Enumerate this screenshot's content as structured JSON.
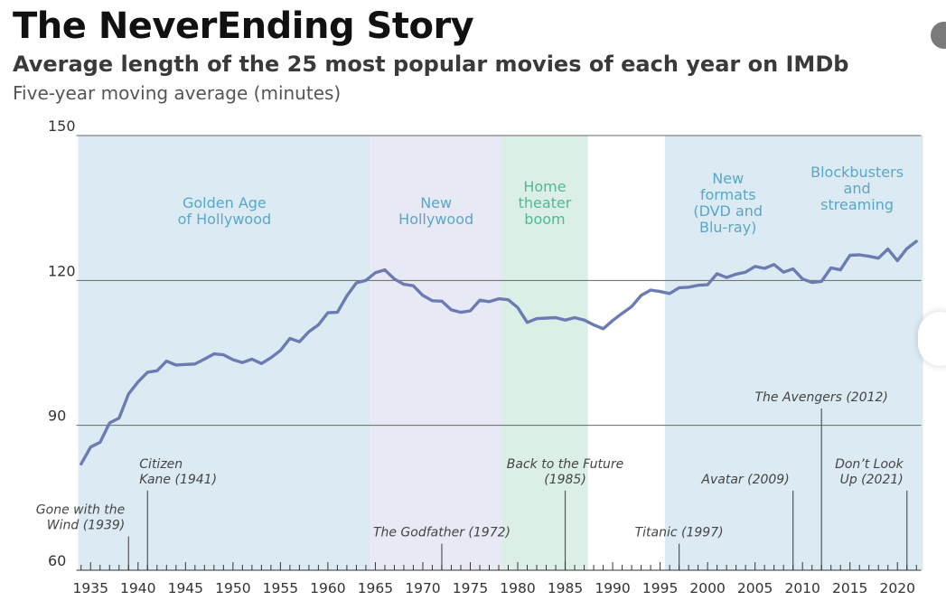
{
  "header": {
    "title": "The NeverEnding Story",
    "subtitle": "Average length of the 25 most popular movies of each year on IMDb",
    "unit": "Five-year moving average (minutes)"
  },
  "colors": {
    "line": "#6c7cb2",
    "era_blue": "#dcebf3",
    "era_purple": "#e7e9f4",
    "era_green": "#dcefe7",
    "era_label_blue": "#5aa6c6",
    "era_label_green": "#4fb89a",
    "gridline": "#666666",
    "annotation_text": "#444444"
  },
  "chart_data": {
    "type": "line",
    "title": "The NeverEnding Story",
    "xlabel": "",
    "ylabel": "Five-year moving average (minutes)",
    "xlim": [
      1933.5,
      2022.5
    ],
    "ylim": [
      60,
      150
    ],
    "yticks": [
      60,
      90,
      120,
      150
    ],
    "xticks": [
      1935,
      1940,
      1945,
      1950,
      1955,
      1960,
      1965,
      1970,
      1975,
      1980,
      1985,
      1990,
      1995,
      2000,
      2005,
      2010,
      2015,
      2020
    ],
    "grid": "horizontal",
    "series": [
      {
        "name": "",
        "x": [
          1934,
          1935,
          1936,
          1937,
          1938,
          1939,
          1940,
          1941,
          1942,
          1943,
          1944,
          1945,
          1946,
          1947,
          1948,
          1949,
          1950,
          1951,
          1952,
          1953,
          1954,
          1955,
          1956,
          1957,
          1958,
          1959,
          1960,
          1961,
          1962,
          1963,
          1964,
          1965,
          1966,
          1967,
          1968,
          1969,
          1970,
          1971,
          1972,
          1973,
          1974,
          1975,
          1976,
          1977,
          1978,
          1979,
          1980,
          1981,
          1982,
          1983,
          1984,
          1985,
          1986,
          1987,
          1988,
          1989,
          1990,
          1991,
          1992,
          1993,
          1994,
          1995,
          1996,
          1997,
          1998,
          1999,
          2000,
          2001,
          2002,
          2003,
          2004,
          2005,
          2006,
          2007,
          2008,
          2009,
          2010,
          2011,
          2012,
          2013,
          2014,
          2015,
          2016,
          2017,
          2018,
          2019,
          2020,
          2021,
          2022
        ],
        "values": [
          82,
          85.5,
          86.5,
          90.5,
          91.5,
          96.5,
          99,
          101,
          101.3,
          103.3,
          102.5,
          102.6,
          102.7,
          103.7,
          104.8,
          104.6,
          103.6,
          103,
          103.7,
          102.8,
          104,
          105.5,
          108,
          107.3,
          109.4,
          110.8,
          113.3,
          113.4,
          116.8,
          119.5,
          120,
          121.6,
          122.2,
          120.3,
          119.2,
          118.9,
          116.9,
          115.8,
          115.7,
          113.9,
          113.4,
          113.7,
          115.9,
          115.6,
          116.2,
          116,
          114.4,
          111.3,
          112.1,
          112.2,
          112.3,
          111.8,
          112.3,
          111.8,
          110.8,
          110,
          111.7,
          113.2,
          114.6,
          116.9,
          118,
          117.7,
          117.3,
          118.5,
          118.6,
          119,
          119.1,
          121.4,
          120.6,
          121.3,
          121.7,
          122.9,
          122.5,
          123.3,
          121.7,
          122.4,
          120.3,
          119.6,
          119.8,
          122.6,
          122.2,
          125.2,
          125.3,
          125,
          124.6,
          126.5,
          124.1,
          126.6,
          128.1
        ]
      }
    ],
    "eras": [
      {
        "label": "Golden Age of Hollywood",
        "lines": [
          "Golden Age",
          "of Hollywood"
        ],
        "x_start": 1933.7,
        "x_end": 1964.5,
        "tint": "blue"
      },
      {
        "label": "New Hollywood",
        "lines": [
          "New",
          "Hollywood"
        ],
        "x_start": 1964.5,
        "x_end": 1978.3,
        "tint": "purple"
      },
      {
        "label": "Home theater boom",
        "lines": [
          "Home",
          "theater",
          "boom"
        ],
        "x_start": 1978.3,
        "x_end": 1987.4,
        "tint": "green"
      },
      {
        "label": "New formats (DVD and Blu-ray)",
        "lines": [
          "New",
          "formats",
          "(DVD and",
          "Blu-ray)"
        ],
        "x_start": 1995.5,
        "x_end": 2008.8,
        "tint": "blue"
      },
      {
        "label": "Blockbusters and streaming",
        "lines": [
          "Blockbusters",
          "and",
          "streaming"
        ],
        "x_start": 2008.8,
        "x_end": 2022.7,
        "tint": "blue"
      }
    ],
    "annotations": [
      {
        "lines": [
          "Gone with the",
          "Wind (1939)"
        ],
        "year": 1939,
        "top_value": 67,
        "anchor": "end"
      },
      {
        "lines": [
          "Citizen",
          "Kane (1941)"
        ],
        "year": 1941,
        "top_value": 76.5,
        "anchor": "start"
      },
      {
        "lines": [
          "The Godfather (1972)"
        ],
        "year": 1972,
        "top_value": 65.5,
        "anchor": "middle"
      },
      {
        "lines": [
          "Back to the Future",
          "(1985)"
        ],
        "year": 1985,
        "top_value": 76.5,
        "anchor": "middle"
      },
      {
        "lines": [
          "Titanic (1997)"
        ],
        "year": 1997,
        "top_value": 65.5,
        "anchor": "middle"
      },
      {
        "lines": [
          "Avatar (2009)"
        ],
        "year": 2009,
        "top_value": 76.5,
        "anchor": "end"
      },
      {
        "lines": [
          "The Avengers (2012)"
        ],
        "year": 2012,
        "top_value": 93.5,
        "anchor": "middle"
      },
      {
        "lines": [
          "Don’t Look",
          "Up (2021)"
        ],
        "year": 2021,
        "top_value": 76.5,
        "anchor": "end"
      }
    ]
  }
}
